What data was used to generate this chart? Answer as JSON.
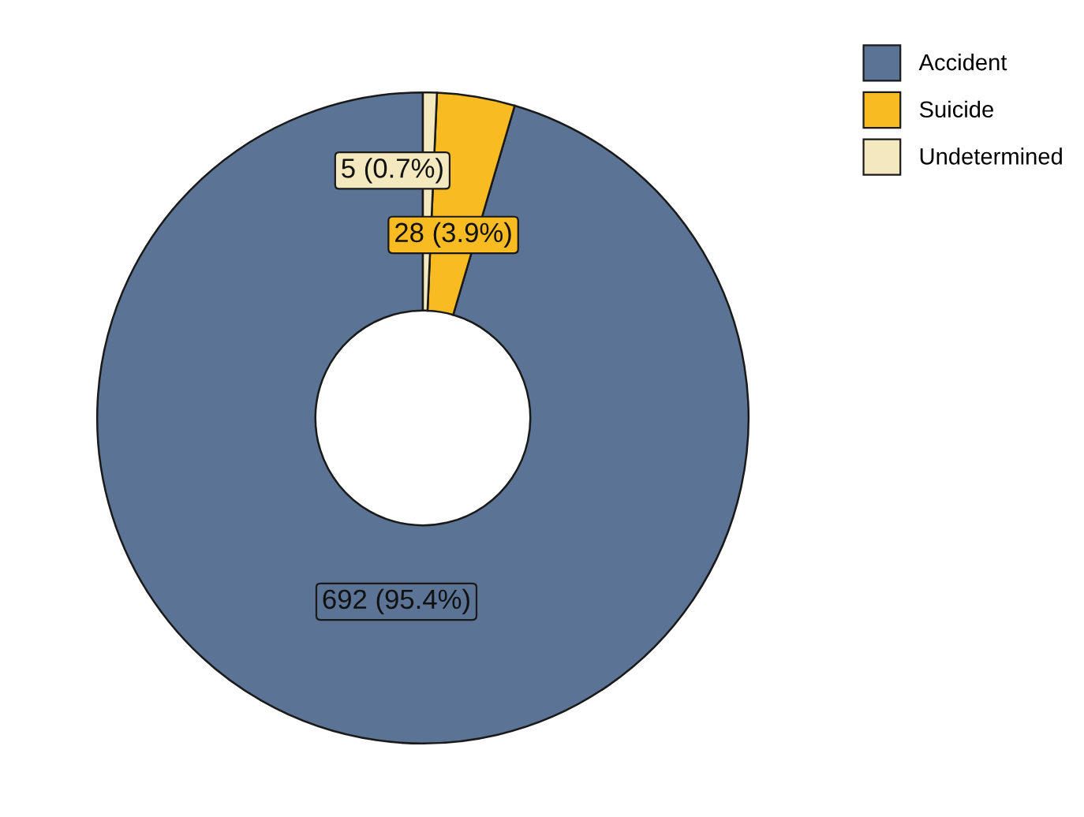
{
  "chart_data": {
    "type": "donut",
    "categories": [
      "Accident",
      "Suicide",
      "Undetermined"
    ],
    "values": [
      692,
      28,
      5
    ],
    "colors": [
      "#5b7394",
      "#f8bb22",
      "#f3e8be"
    ],
    "value_labels": [
      "692 (95.4%)",
      "28 (3.9%)",
      "5 (0.7%)"
    ],
    "legend": "top right"
  }
}
